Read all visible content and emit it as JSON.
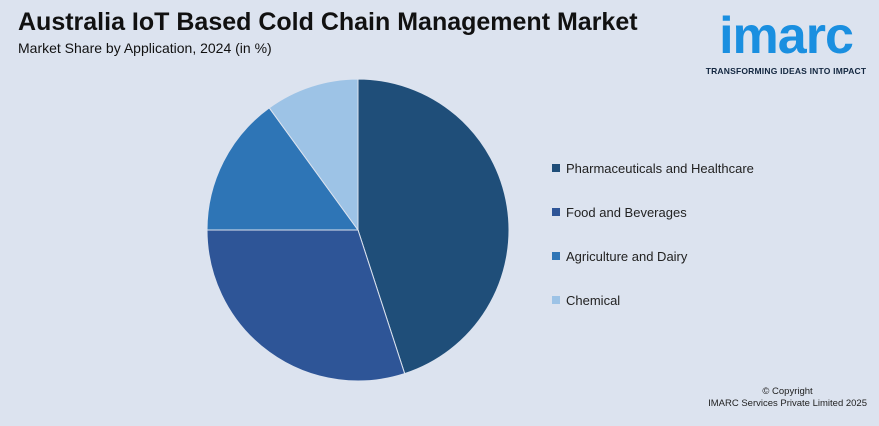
{
  "header": {
    "title": "Australia IoT Based Cold Chain Management Market",
    "subtitle": "Market Share by Application, 2024 (in %)"
  },
  "logo": {
    "word": "imarc",
    "tagline": "TRANSFORMING IDEAS INTO IMPACT"
  },
  "chart_data": {
    "type": "pie",
    "categories": [
      "Pharmaceuticals and Healthcare",
      "Food and Beverages",
      "Agriculture and Dairy",
      "Chemical"
    ],
    "values": [
      45,
      30,
      15,
      10
    ],
    "colors": [
      "#1f4e79",
      "#2e5597",
      "#2e75b6",
      "#9dc3e6"
    ],
    "start_angle": "12 o'clock",
    "direction": "clockwise",
    "legend_position": "right"
  },
  "footer": {
    "copyright_line1": "© Copyright",
    "copyright_line2": "IMARC Services Private Limited 2025"
  }
}
